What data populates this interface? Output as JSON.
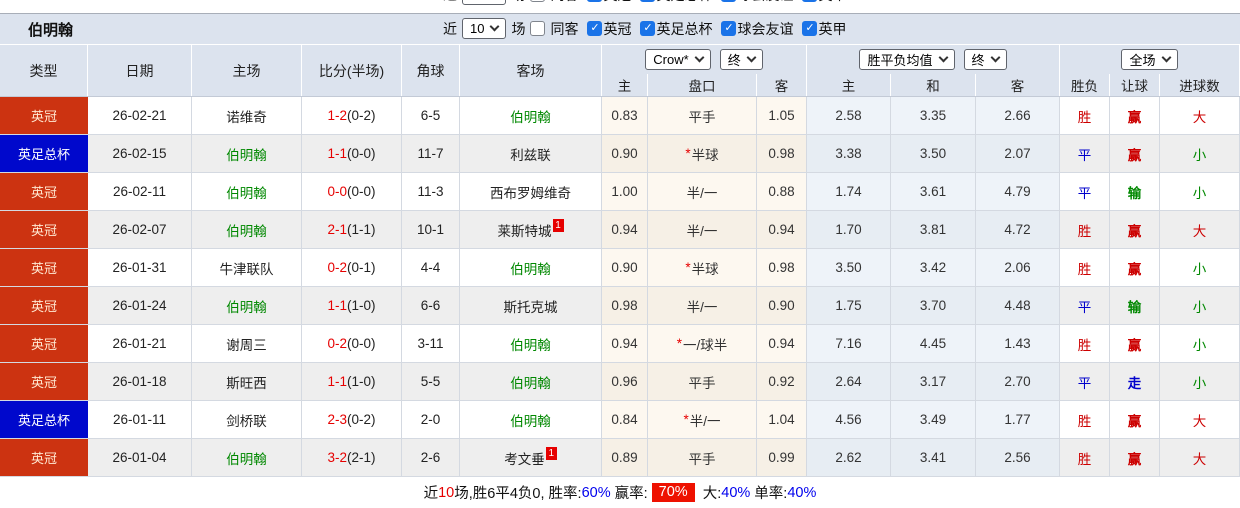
{
  "title": "伯明翰",
  "filter": {
    "near_label": "近",
    "matches_value": "10",
    "matches_label": "场",
    "same_opponent_label": "同客",
    "leagues": [
      {
        "label": "英冠",
        "checked": true
      },
      {
        "label": "英足总杯",
        "checked": true
      },
      {
        "label": "球会友谊",
        "checked": true
      },
      {
        "label": "英甲",
        "checked": true
      }
    ]
  },
  "controls": {
    "odds_source": "Crow*",
    "odds_time": "终",
    "avg_label": "胜平负均值",
    "avg_time": "终",
    "scope": "全场"
  },
  "columns": {
    "type": "类型",
    "date": "日期",
    "home": "主场",
    "score": "比分(半场)",
    "corners": "角球",
    "away": "客场",
    "odds_home": "主",
    "handicap": "盘口",
    "odds_away": "客",
    "avg_home": "主",
    "avg_draw": "和",
    "avg_away": "客",
    "result": "胜负",
    "handicap_result": "让球",
    "goals": "进球数"
  },
  "colors": {
    "league_red_bg": "#cc3311",
    "league_blue_bg": "#0008cc",
    "team_green": "#008800",
    "score_red": "#e60000",
    "win_red": "#cc0000",
    "draw_blue": "#0000cc",
    "lose_green": "#008800",
    "percent_blue": "#0000ee",
    "rate_badge_bg": "#ee1100"
  },
  "rows": [
    {
      "league": "英冠",
      "league_color": "red",
      "date": "26-02-21",
      "home": "诺维奇",
      "home_green": false,
      "home_card": "",
      "score": "1-2",
      "half": "(0-2)",
      "corners": "6-5",
      "away": "伯明翰",
      "away_green": true,
      "away_card": "",
      "odds_home": "0.83",
      "handicap_star": false,
      "handicap": "平手",
      "odds_away": "1.05",
      "avg_home": "2.58",
      "avg_draw": "3.35",
      "avg_away": "2.66",
      "result": "胜",
      "result_color": "red",
      "hr": "赢",
      "hr_color": "red",
      "goals": "大",
      "goals_color": "red"
    },
    {
      "league": "英足总杯",
      "league_color": "blue",
      "date": "26-02-15",
      "home": "伯明翰",
      "home_green": true,
      "home_card": "",
      "score": "1-1",
      "half": "(0-0)",
      "corners": "11-7",
      "away": "利兹联",
      "away_green": false,
      "away_card": "",
      "odds_home": "0.90",
      "handicap_star": true,
      "handicap": "半球",
      "odds_away": "0.98",
      "avg_home": "3.38",
      "avg_draw": "3.50",
      "avg_away": "2.07",
      "result": "平",
      "result_color": "blue",
      "hr": "赢",
      "hr_color": "red",
      "goals": "小",
      "goals_color": "green"
    },
    {
      "league": "英冠",
      "league_color": "red",
      "date": "26-02-11",
      "home": "伯明翰",
      "home_green": true,
      "home_card": "",
      "score": "0-0",
      "half": "(0-0)",
      "corners": "11-3",
      "away": "西布罗姆维奇",
      "away_green": false,
      "away_card": "",
      "odds_home": "1.00",
      "handicap_star": false,
      "handicap": "半/一",
      "odds_away": "0.88",
      "avg_home": "1.74",
      "avg_draw": "3.61",
      "avg_away": "4.79",
      "result": "平",
      "result_color": "blue",
      "hr": "输",
      "hr_color": "green",
      "goals": "小",
      "goals_color": "green"
    },
    {
      "league": "英冠",
      "league_color": "red",
      "date": "26-02-07",
      "home": "伯明翰",
      "home_green": true,
      "home_card": "",
      "score": "2-1",
      "half": "(1-1)",
      "corners": "10-1",
      "away": "莱斯特城",
      "away_green": false,
      "away_card": "1",
      "odds_home": "0.94",
      "handicap_star": false,
      "handicap": "半/一",
      "odds_away": "0.94",
      "avg_home": "1.70",
      "avg_draw": "3.81",
      "avg_away": "4.72",
      "result": "胜",
      "result_color": "red",
      "hr": "赢",
      "hr_color": "red",
      "goals": "大",
      "goals_color": "red"
    },
    {
      "league": "英冠",
      "league_color": "red",
      "date": "26-01-31",
      "home": "牛津联队",
      "home_green": false,
      "home_card": "",
      "score": "0-2",
      "half": "(0-1)",
      "corners": "4-4",
      "away": "伯明翰",
      "away_green": true,
      "away_card": "",
      "odds_home": "0.90",
      "handicap_star": true,
      "handicap": "半球",
      "odds_away": "0.98",
      "avg_home": "3.50",
      "avg_draw": "3.42",
      "avg_away": "2.06",
      "result": "胜",
      "result_color": "red",
      "hr": "赢",
      "hr_color": "red",
      "goals": "小",
      "goals_color": "green"
    },
    {
      "league": "英冠",
      "league_color": "red",
      "date": "26-01-24",
      "home": "伯明翰",
      "home_green": true,
      "home_card": "",
      "score": "1-1",
      "half": "(1-0)",
      "corners": "6-6",
      "away": "斯托克城",
      "away_green": false,
      "away_card": "",
      "odds_home": "0.98",
      "handicap_star": false,
      "handicap": "半/一",
      "odds_away": "0.90",
      "avg_home": "1.75",
      "avg_draw": "3.70",
      "avg_away": "4.48",
      "result": "平",
      "result_color": "blue",
      "hr": "输",
      "hr_color": "green",
      "goals": "小",
      "goals_color": "green"
    },
    {
      "league": "英冠",
      "league_color": "red",
      "date": "26-01-21",
      "home": "谢周三",
      "home_green": false,
      "home_card": "",
      "score": "0-2",
      "half": "(0-0)",
      "corners": "3-11",
      "away": "伯明翰",
      "away_green": true,
      "away_card": "",
      "odds_home": "0.94",
      "handicap_star": true,
      "handicap": "一/球半",
      "odds_away": "0.94",
      "avg_home": "7.16",
      "avg_draw": "4.45",
      "avg_away": "1.43",
      "result": "胜",
      "result_color": "red",
      "hr": "赢",
      "hr_color": "red",
      "goals": "小",
      "goals_color": "green"
    },
    {
      "league": "英冠",
      "league_color": "red",
      "date": "26-01-18",
      "home": "斯旺西",
      "home_green": false,
      "home_card": "",
      "score": "1-1",
      "half": "(1-0)",
      "corners": "5-5",
      "away": "伯明翰",
      "away_green": true,
      "away_card": "",
      "odds_home": "0.96",
      "handicap_star": false,
      "handicap": "平手",
      "odds_away": "0.92",
      "avg_home": "2.64",
      "avg_draw": "3.17",
      "avg_away": "2.70",
      "result": "平",
      "result_color": "blue",
      "hr": "走",
      "hr_color": "blue",
      "goals": "小",
      "goals_color": "green"
    },
    {
      "league": "英足总杯",
      "league_color": "blue",
      "date": "26-01-11",
      "home": "剑桥联",
      "home_green": false,
      "home_card": "",
      "score": "2-3",
      "half": "(0-2)",
      "corners": "2-0",
      "away": "伯明翰",
      "away_green": true,
      "away_card": "",
      "odds_home": "0.84",
      "handicap_star": true,
      "handicap": "半/一",
      "odds_away": "1.04",
      "avg_home": "4.56",
      "avg_draw": "3.49",
      "avg_away": "1.77",
      "result": "胜",
      "result_color": "red",
      "hr": "赢",
      "hr_color": "red",
      "goals": "大",
      "goals_color": "red"
    },
    {
      "league": "英冠",
      "league_color": "red",
      "date": "26-01-04",
      "home": "伯明翰",
      "home_green": true,
      "home_card": "",
      "score": "3-2",
      "half": "(2-1)",
      "corners": "2-6",
      "away": "考文垂",
      "away_green": false,
      "away_card": "1",
      "odds_home": "0.89",
      "handicap_star": false,
      "handicap": "平手",
      "odds_away": "0.99",
      "avg_home": "2.62",
      "avg_draw": "3.41",
      "avg_away": "2.56",
      "result": "胜",
      "result_color": "red",
      "hr": "赢",
      "hr_color": "red",
      "goals": "大",
      "goals_color": "red"
    }
  ],
  "summary": {
    "segments": [
      {
        "text": "近",
        "style": "plain"
      },
      {
        "text": "10",
        "style": "red"
      },
      {
        "text": "场,胜6平4负0, 胜率:",
        "style": "plain"
      },
      {
        "text": "60%",
        "style": "blue"
      },
      {
        "text": " 赢率:",
        "style": "plain"
      },
      {
        "text": "70%",
        "style": "badge"
      },
      {
        "text": " 大:",
        "style": "plain"
      },
      {
        "text": "40%",
        "style": "blue"
      },
      {
        "text": " 单率:",
        "style": "plain"
      },
      {
        "text": "40%",
        "style": "blue"
      }
    ]
  }
}
